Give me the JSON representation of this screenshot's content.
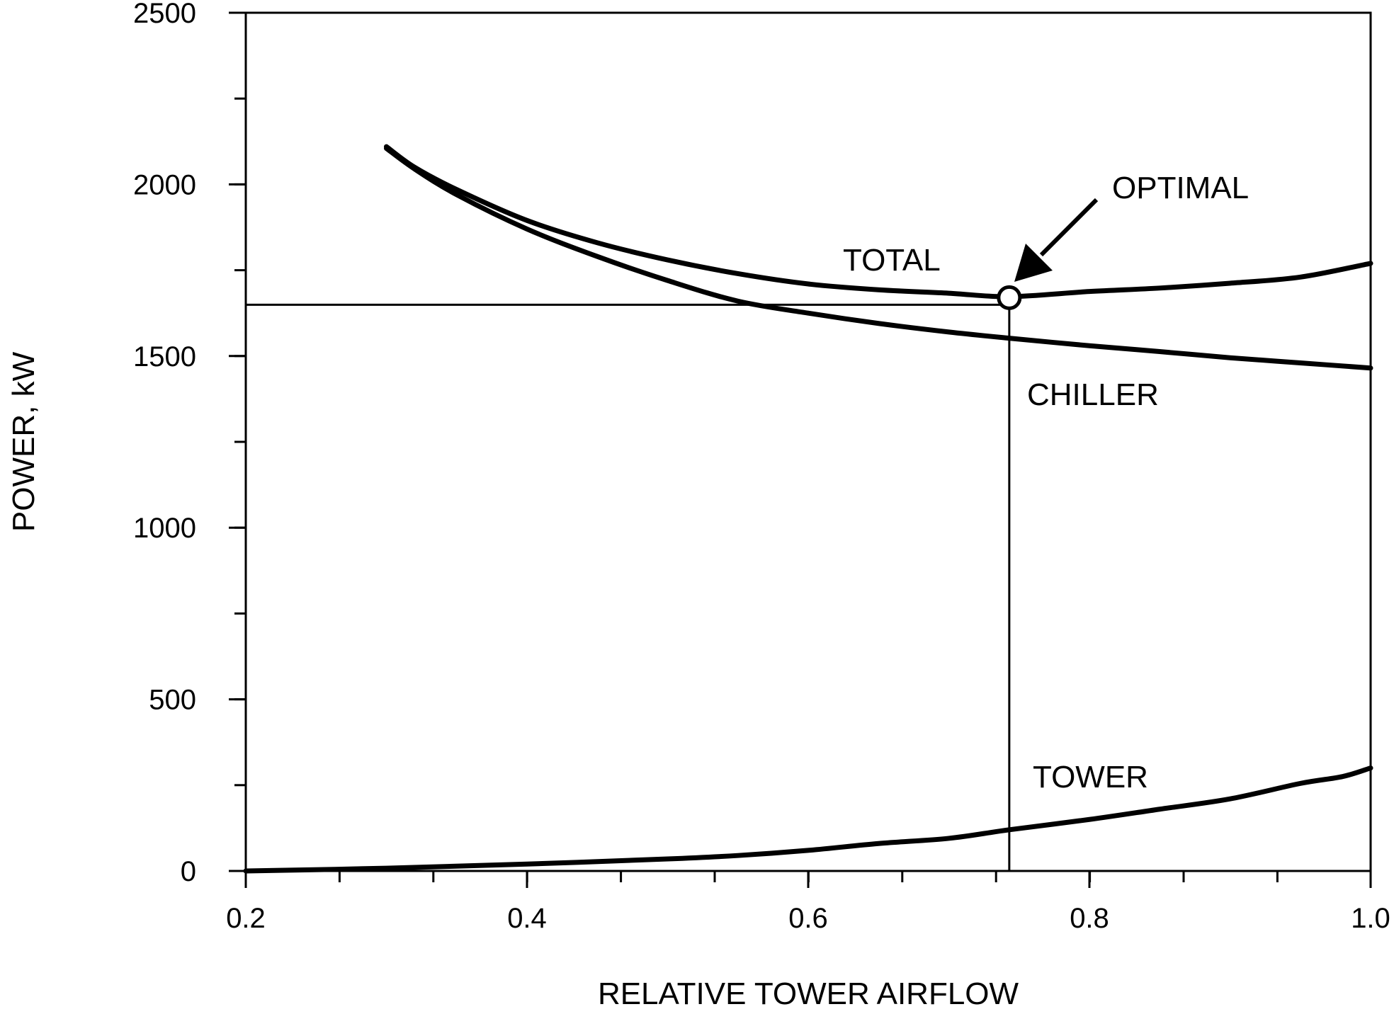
{
  "chart_data": {
    "type": "line",
    "xlabel": "RELATIVE TOWER AIRFLOW",
    "ylabel": "POWER, kW",
    "xlim": [
      0.2,
      1.0
    ],
    "ylim": [
      0,
      2500
    ],
    "x_ticks": [
      "0.2",
      "0.4",
      "0.6",
      "0.8",
      "1.0"
    ],
    "y_ticks": [
      "0",
      "500",
      "1000",
      "1500",
      "2000",
      "2500"
    ],
    "x_minor_step": 0.0667,
    "y_minor_step": 250,
    "grid": false,
    "series": [
      {
        "name": "TOTAL",
        "x": [
          0.3,
          0.32,
          0.35,
          0.4,
          0.45,
          0.5,
          0.55,
          0.6,
          0.65,
          0.7,
          0.743,
          0.8,
          0.85,
          0.9,
          0.95,
          1.0
        ],
        "y": [
          2110,
          2050,
          1985,
          1895,
          1830,
          1780,
          1740,
          1710,
          1693,
          1683,
          1673,
          1688,
          1698,
          1712,
          1730,
          1770
        ]
      },
      {
        "name": "CHILLER",
        "x": [
          0.3,
          0.32,
          0.35,
          0.4,
          0.45,
          0.5,
          0.55,
          0.6,
          0.65,
          0.7,
          0.743,
          0.8,
          0.85,
          0.9,
          0.95,
          1.0
        ],
        "y": [
          2105,
          2045,
          1970,
          1870,
          1790,
          1720,
          1660,
          1625,
          1595,
          1570,
          1552,
          1530,
          1513,
          1495,
          1480,
          1465
        ]
      },
      {
        "name": "TOWER",
        "x": [
          0.2,
          0.3,
          0.4,
          0.5,
          0.55,
          0.6,
          0.65,
          0.7,
          0.743,
          0.8,
          0.85,
          0.9,
          0.95,
          0.98,
          1.0
        ],
        "y": [
          0,
          8,
          20,
          35,
          45,
          60,
          80,
          95,
          120,
          150,
          180,
          210,
          255,
          275,
          300
        ]
      }
    ],
    "optimal": {
      "label": "OPTIMAL",
      "x": 0.743,
      "y": 1670
    },
    "series_labels": {
      "total": "TOTAL",
      "chiller": "CHILLER",
      "tower": "TOWER"
    }
  }
}
